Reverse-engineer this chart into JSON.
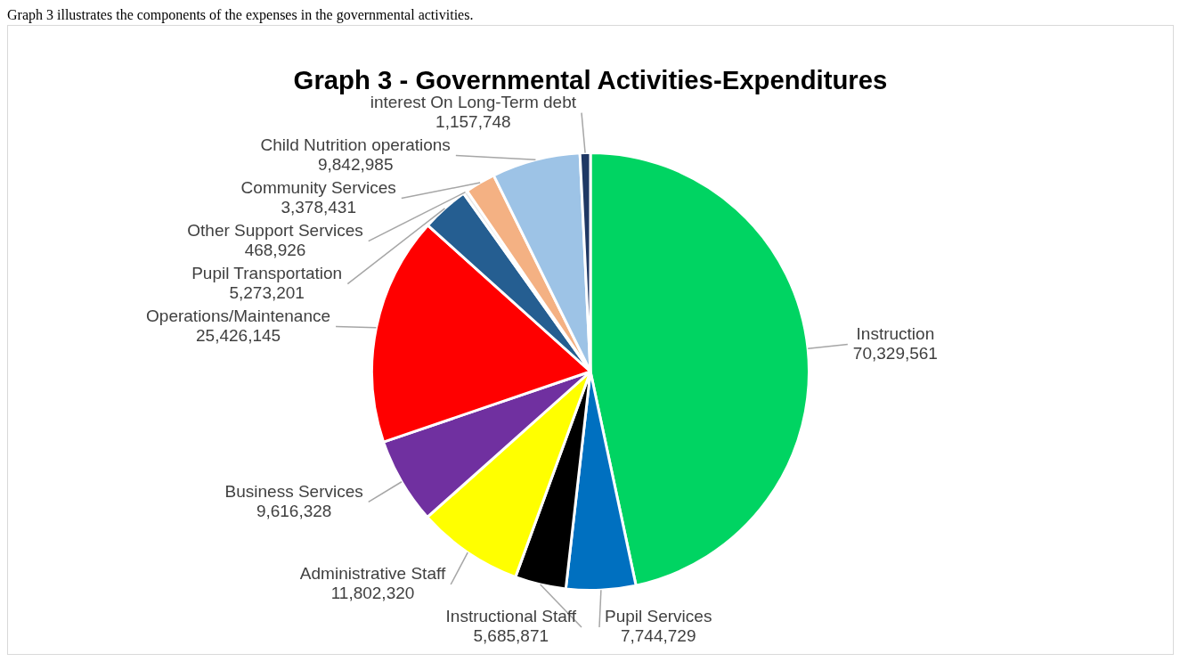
{
  "chart_data": {
    "type": "pie",
    "title": "Graph 3 - Governmental Activities-Expenditures",
    "annotations": [
      "Graph 3 illustrates the components of the expenses in the governmental activities."
    ],
    "categories": [
      "Instruction",
      "Pupil Services",
      "Instructional Staff",
      "Administrative Staff",
      "Business Services",
      "Operations/Maintenance",
      "Pupil Transportation",
      "Other Support Services",
      "Community Services",
      "Child Nutrition operations",
      "interest On Long-Term debt"
    ],
    "values": [
      70329561,
      7744729,
      5685871,
      11802320,
      9616328,
      25426145,
      5273201,
      468926,
      3378431,
      9842985,
      1157748
    ],
    "colors": [
      "#00d462",
      "#0070c0",
      "#000000",
      "#ffff00",
      "#7030a0",
      "#ff0000",
      "#255e91",
      "#e7e6e6",
      "#f4b183",
      "#9dc3e6",
      "#1f3864"
    ],
    "value_labels": [
      "70,329,561",
      "7,744,729",
      "5,685,871",
      "11,802,320",
      "9,616,328",
      "25,426,145",
      "5,273,201",
      "468,926",
      "3,378,431",
      "9,842,985",
      "1,157,748"
    ],
    "legend": false
  }
}
